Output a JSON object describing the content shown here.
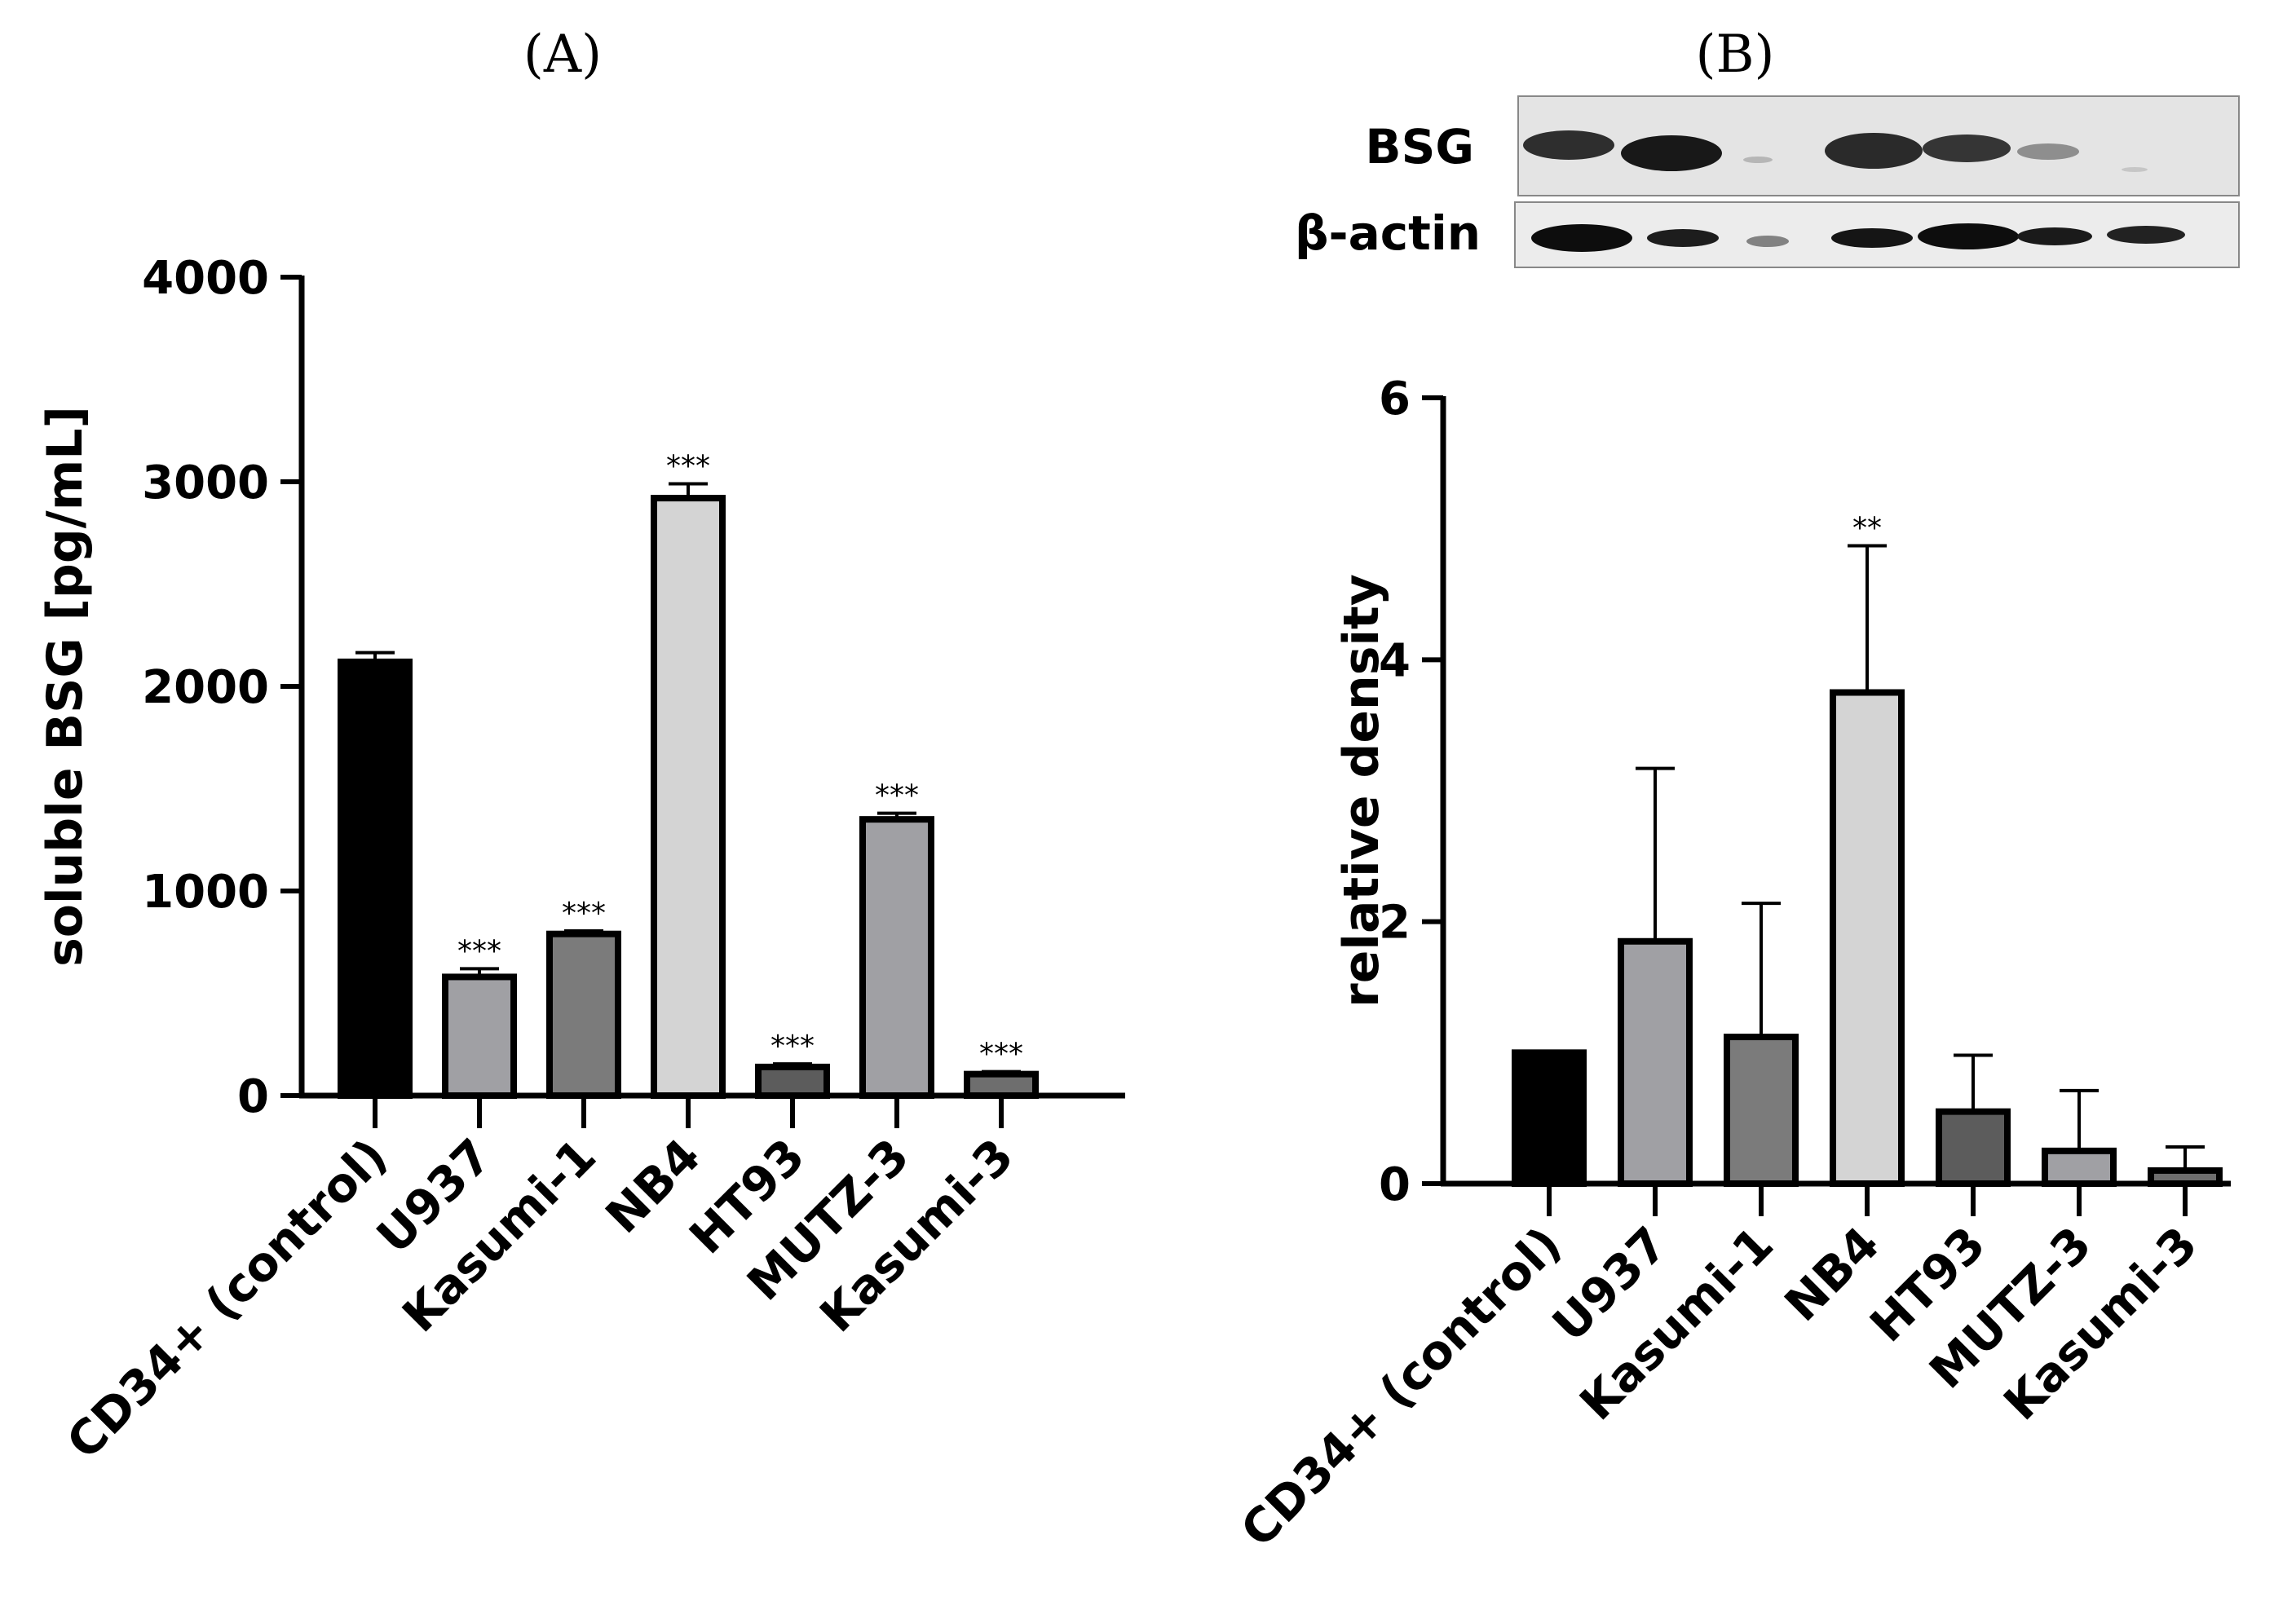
{
  "panels": {
    "a_label": "(A)",
    "b_label": "(B)"
  },
  "colors": {
    "bar_fills": [
      "#000000",
      "#a0a0a4",
      "#7b7b7b",
      "#d4d4d4",
      "#5c5c5c",
      "#a0a0a4",
      "#6e6e6e"
    ]
  },
  "blot": {
    "rows": [
      "BSG",
      "β-actin"
    ]
  },
  "chart_data": [
    {
      "type": "bar",
      "categories": [
        "CD34+ (control)",
        "U937",
        "Kasumi-1",
        "NB4",
        "HT93",
        "MUTZ-3",
        "Kasumi-3"
      ],
      "values": [
        2120,
        580,
        790,
        2920,
        140,
        1350,
        105
      ],
      "errors": [
        45,
        40,
        15,
        70,
        15,
        30,
        12
      ],
      "significance": [
        "",
        "***",
        "***",
        "***",
        "***",
        "***",
        "***"
      ],
      "ylabel": "soluble BSG [pg/mL]",
      "ylim": [
        0,
        4000
      ],
      "yticks": [
        0,
        1000,
        2000,
        3000,
        4000
      ],
      "grid": false
    },
    {
      "type": "bar",
      "categories": [
        "CD34+ (control)",
        "U937",
        "Kasumi-1",
        "NB4",
        "HT93",
        "MUTZ-3",
        "Kasumi-3"
      ],
      "values": [
        1.0,
        1.85,
        1.12,
        3.75,
        0.55,
        0.25,
        0.1
      ],
      "errors": [
        0,
        1.32,
        1.02,
        1.12,
        0.43,
        0.46,
        0.18
      ],
      "significance": [
        "",
        "",
        "",
        "**",
        "",
        "",
        ""
      ],
      "ylabel": "relative density",
      "ylim": [
        0,
        6
      ],
      "yticks": [
        0,
        2,
        4,
        6
      ],
      "grid": false
    }
  ]
}
